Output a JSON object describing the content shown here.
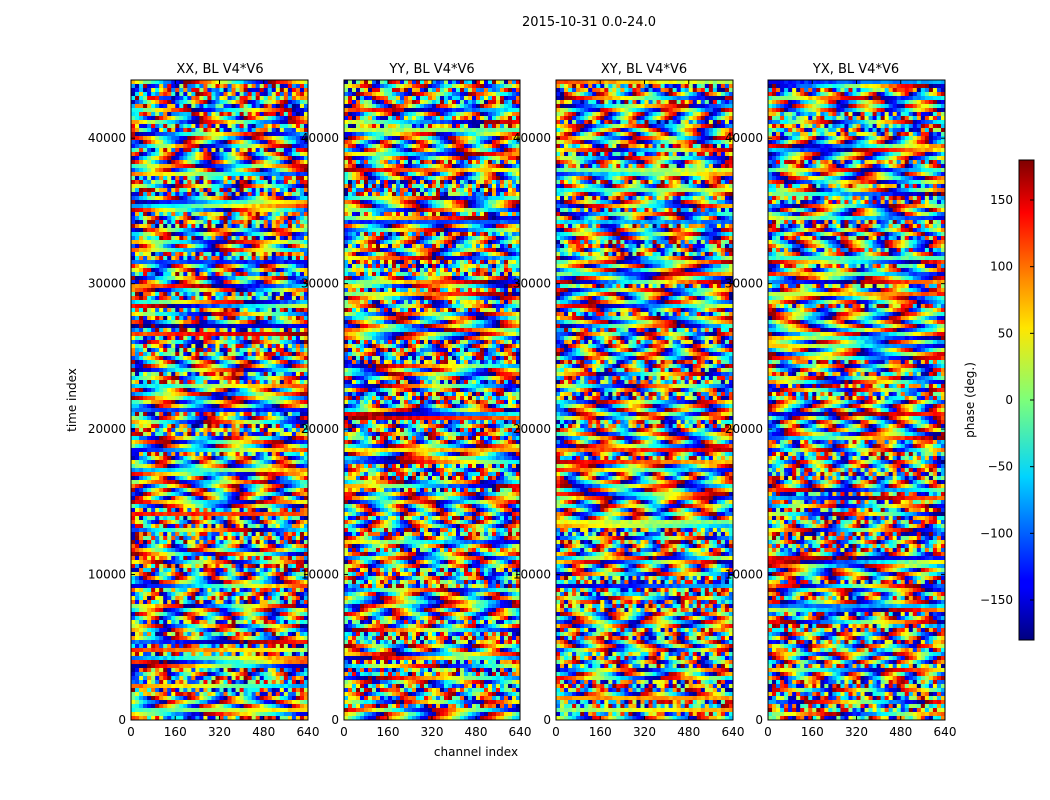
{
  "chart_data": {
    "type": "heatmap",
    "suptitle": "2015-10-31 0.0-24.0",
    "xlabel": "channel index",
    "ylabel": "time index",
    "xlim": [
      0,
      640
    ],
    "ylim": [
      0,
      44000
    ],
    "xticks": [
      0,
      160,
      320,
      480,
      640
    ],
    "yticks": [
      0,
      10000,
      20000,
      30000,
      40000
    ],
    "panels": [
      {
        "title": "XX, BL V4*V6"
      },
      {
        "title": "YY, BL V4*V6"
      },
      {
        "title": "XY, BL V4*V6"
      },
      {
        "title": "YX, BL V4*V6"
      }
    ],
    "colorbar": {
      "label": "phase (deg.)",
      "range": [
        -180,
        180
      ],
      "ticks": [
        150,
        100,
        50,
        0,
        -50,
        -100,
        -150
      ],
      "tick_labels": [
        "150",
        "100",
        "50",
        "0",
        "−50",
        "−100",
        "−150"
      ],
      "colormap": "jet"
    }
  }
}
